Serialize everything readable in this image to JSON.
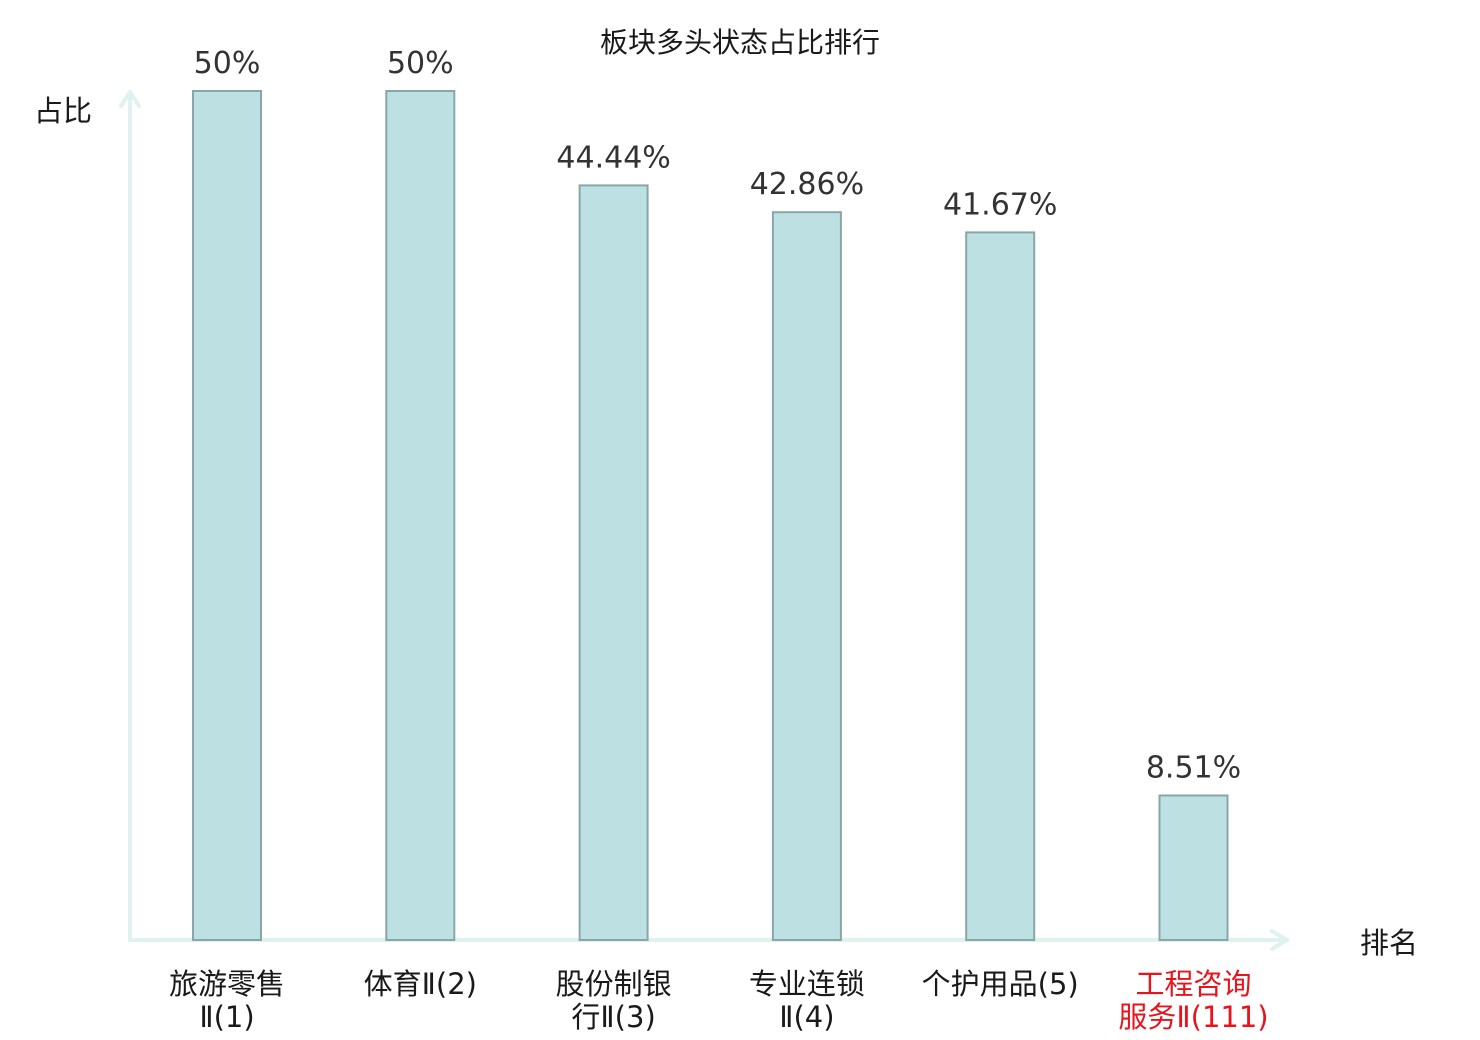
{
  "chart_data": {
    "type": "bar",
    "title": "板块多头状态占比排行",
    "xlabel": "排名",
    "ylabel": "占比",
    "ylim": [
      0,
      50
    ],
    "grid": false,
    "legend": "none",
    "categories": [
      {
        "label": "旅游零售Ⅱ(1)",
        "lines": [
          "旅游零售",
          "Ⅱ(1)"
        ],
        "highlight": false
      },
      {
        "label": "体育Ⅱ(2)",
        "lines": [
          "体育Ⅱ(2)"
        ],
        "highlight": false
      },
      {
        "label": "股份制银行Ⅱ(3)",
        "lines": [
          "股份制银",
          "行Ⅱ(3)"
        ],
        "highlight": false
      },
      {
        "label": "专业连锁Ⅱ(4)",
        "lines": [
          "专业连锁",
          "Ⅱ(4)"
        ],
        "highlight": false
      },
      {
        "label": "个护用品(5)",
        "lines": [
          "个护用品(5)"
        ],
        "highlight": false
      },
      {
        "label": "工程咨询服务Ⅱ(111)",
        "lines": [
          "工程咨询",
          "服务Ⅱ(111)"
        ],
        "highlight": true
      }
    ],
    "values": [
      50,
      50,
      44.44,
      42.86,
      41.67,
      8.51
    ],
    "value_labels": [
      "50%",
      "50%",
      "44.44%",
      "42.86%",
      "41.67%",
      "8.51%"
    ],
    "colors": {
      "bar_fill": "#bde1e3",
      "bar_stroke": "#88a6a8",
      "axis": "#e0f2f0",
      "highlight_text": "#e8141c",
      "normal_text": "#1a1a1a"
    }
  }
}
